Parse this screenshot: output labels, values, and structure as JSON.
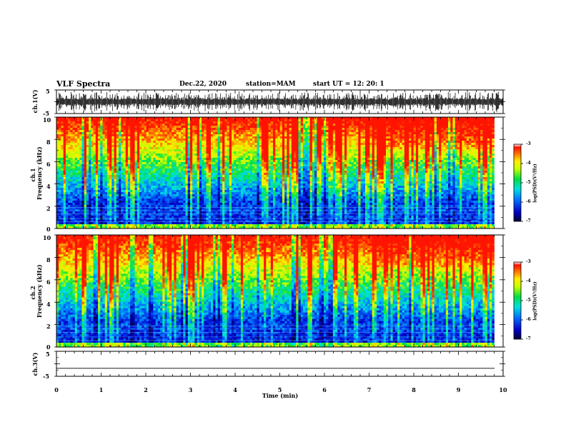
{
  "header": {
    "title": "VLF Spectra",
    "date": "Dec.22, 2020",
    "station": "station=MAM",
    "start": "start  UT  =   12: 20: 1"
  },
  "chart_data": [
    {
      "type": "line",
      "name": "ch1-waveform",
      "ylabel": "ch.1(V)",
      "ylim": [
        -5,
        5
      ],
      "y_ticks": [
        "5",
        "-5"
      ],
      "xlim": [
        0,
        10
      ],
      "signal": "broadband noise bursts roughly between -4 and +4 V across the full record"
    },
    {
      "type": "heatmap",
      "name": "ch1-spectrogram",
      "ylabel": "ch.1\nFrequency (kHz)",
      "ylim": [
        0,
        10
      ],
      "y_ticks": [
        "0",
        "2",
        "4",
        "6",
        "8",
        "10"
      ],
      "xlim": [
        0,
        10
      ],
      "x_end": 9.8,
      "colorbar": {
        "label": "log(PSD)(V²/Hz)",
        "range": [
          -7,
          -3
        ],
        "ticks": [
          "-3",
          "-4",
          "-5",
          "-6",
          "-7"
        ]
      }
    },
    {
      "type": "heatmap",
      "name": "ch2-spectrogram",
      "ylabel": "ch.2\nFrequency (kHz)",
      "ylim": [
        0,
        10
      ],
      "y_ticks": [
        "0",
        "2",
        "4",
        "6",
        "8",
        "10"
      ],
      "xlim": [
        0,
        10
      ],
      "x_end": 9.8,
      "colorbar": {
        "label": "log(PSD)(V²/Hz)",
        "range": [
          -7,
          -3
        ],
        "ticks": [
          "-3",
          "-4",
          "-5",
          "-6",
          "-7"
        ]
      }
    },
    {
      "type": "line",
      "name": "ch3-waveform",
      "ylabel": "ch.3(V)",
      "ylim": [
        -5,
        5
      ],
      "y_ticks": [
        "5",
        "-5"
      ],
      "xlim": [
        0,
        10
      ],
      "values_constant": -1.8
    }
  ],
  "xaxis": {
    "label": "Time (min)",
    "ticks": [
      "0",
      "1",
      "2",
      "3",
      "4",
      "5",
      "6",
      "7",
      "8",
      "9",
      "10"
    ]
  },
  "ylabels": {
    "ch1_wave": "ch.1(V)",
    "ch1_spec_a": "ch.1",
    "ch1_spec_b": "Frequency (kHz)",
    "ch2_spec_a": "ch.2",
    "ch2_spec_b": "Frequency (kHz)",
    "ch3_wave": "ch.3(V)"
  },
  "colorbar": {
    "label": "log(PSD)(V²/Hz)",
    "ticks": [
      "-3",
      "-4",
      "-5",
      "-6",
      "-7"
    ]
  },
  "freq_ticks": [
    "0",
    "2",
    "4",
    "6",
    "8",
    "10"
  ],
  "volt_ticks": [
    "5",
    "-5"
  ]
}
